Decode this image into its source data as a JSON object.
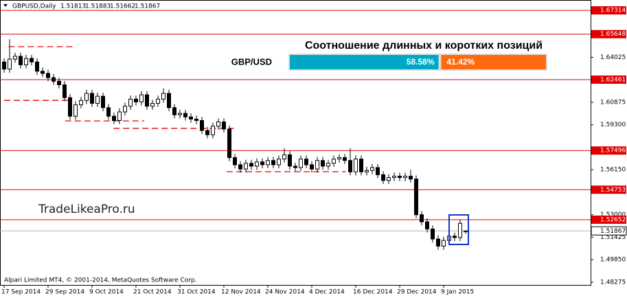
{
  "chart_data": {
    "type": "candlestick",
    "symbol": "GBPUSD,Daily",
    "watermark": "TradeLikeaPro.ru",
    "copyright": "Alpari Limited MT4, © 2001-2014, MetaQuotes Software Corp.",
    "categories": [
      "17 Sep 2014",
      null,
      null,
      null,
      null,
      null,
      null,
      null,
      "29 Sep 2014",
      null,
      null,
      null,
      null,
      null,
      null,
      null,
      "9 Oct 2014",
      null,
      null,
      null,
      null,
      null,
      null,
      null,
      "21 Oct 2014",
      null,
      null,
      null,
      null,
      null,
      null,
      null,
      "31 Oct 2014",
      null,
      null,
      null,
      null,
      null,
      null,
      null,
      "12 Nov 2014",
      null,
      null,
      null,
      null,
      null,
      null,
      null,
      "24 Nov 2014",
      null,
      null,
      null,
      null,
      null,
      null,
      null,
      "4 Dec 2014",
      null,
      null,
      null,
      null,
      null,
      null,
      null,
      "16 Dec 2014",
      null,
      null,
      null,
      null,
      null,
      null,
      null,
      "29 Dec 2014",
      null,
      null,
      null,
      null,
      null,
      null,
      null,
      "9 Jan 2015",
      null,
      null,
      null,
      null
    ],
    "open": [
      1.637,
      1.632,
      1.639,
      1.641,
      1.635,
      1.6395,
      1.637,
      1.6305,
      1.629,
      1.626,
      1.6235,
      1.621,
      1.612,
      1.599,
      1.607,
      1.61,
      1.615,
      1.608,
      1.613,
      1.605,
      1.599,
      1.596,
      1.602,
      1.606,
      1.611,
      1.609,
      1.614,
      1.606,
      1.608,
      1.611,
      1.615,
      1.605,
      1.6,
      1.601,
      1.5985,
      1.597,
      1.596,
      1.589,
      1.586,
      1.592,
      1.595,
      1.59,
      1.57,
      1.565,
      1.562,
      1.566,
      1.564,
      1.567,
      1.565,
      1.568,
      1.565,
      1.569,
      1.572,
      1.564,
      1.563,
      1.569,
      1.565,
      1.562,
      1.568,
      1.564,
      1.566,
      1.569,
      1.57,
      1.568,
      1.56,
      1.569,
      1.56,
      1.561,
      1.563,
      1.558,
      1.554,
      1.556,
      1.557,
      1.556,
      1.557,
      1.555,
      1.53,
      1.525,
      1.52,
      1.513,
      1.508,
      1.512,
      1.515,
      1.514,
      1.51813
    ],
    "high": [
      1.6395,
      1.653,
      1.6435,
      1.6435,
      1.642,
      1.642,
      1.6395,
      1.633,
      1.6315,
      1.6285,
      1.626,
      1.6235,
      1.6145,
      1.6095,
      1.6125,
      1.6175,
      1.6175,
      1.6155,
      1.6155,
      1.6075,
      1.6015,
      1.6045,
      1.6085,
      1.6135,
      1.6135,
      1.6165,
      1.6165,
      1.6105,
      1.6135,
      1.6185,
      1.6175,
      1.6075,
      1.6035,
      1.6035,
      1.601,
      1.5995,
      1.5985,
      1.5915,
      1.5945,
      1.5975,
      1.5975,
      1.5925,
      1.5725,
      1.5675,
      1.5685,
      1.5685,
      1.5695,
      1.5695,
      1.5705,
      1.5705,
      1.5715,
      1.5765,
      1.5745,
      1.5665,
      1.5715,
      1.5715,
      1.5675,
      1.5705,
      1.5705,
      1.5685,
      1.5715,
      1.5725,
      1.5725,
      1.5765,
      1.5715,
      1.5715,
      1.5635,
      1.5655,
      1.5655,
      1.5605,
      1.5585,
      1.5595,
      1.5595,
      1.5595,
      1.5615,
      1.5575,
      1.5325,
      1.5275,
      1.5225,
      1.5155,
      1.5145,
      1.5175,
      1.5175,
      1.5265,
      1.51883
    ],
    "low": [
      1.6295,
      1.6295,
      1.6365,
      1.6325,
      1.6325,
      1.6345,
      1.628,
      1.6265,
      1.6235,
      1.621,
      1.6185,
      1.6095,
      1.5965,
      1.5965,
      1.6045,
      1.6075,
      1.6055,
      1.6055,
      1.6025,
      1.5965,
      1.5935,
      1.5935,
      1.5995,
      1.6035,
      1.6065,
      1.6065,
      1.6035,
      1.6035,
      1.6055,
      1.6085,
      1.6025,
      1.5975,
      1.5975,
      1.596,
      1.5945,
      1.5935,
      1.5865,
      1.5835,
      1.5835,
      1.5895,
      1.5875,
      1.5675,
      1.5625,
      1.5595,
      1.5595,
      1.5615,
      1.5615,
      1.5625,
      1.5625,
      1.5625,
      1.5625,
      1.5665,
      1.5615,
      1.5605,
      1.5605,
      1.5625,
      1.5595,
      1.5595,
      1.5615,
      1.5615,
      1.5635,
      1.5665,
      1.5655,
      1.5575,
      1.5575,
      1.5575,
      1.5575,
      1.5585,
      1.5555,
      1.5515,
      1.5515,
      1.5535,
      1.5535,
      1.5535,
      1.5525,
      1.5275,
      1.5225,
      1.5175,
      1.5105,
      1.5055,
      1.5055,
      1.5095,
      1.5115,
      1.5115,
      1.51662
    ],
    "close": [
      1.632,
      1.639,
      1.641,
      1.635,
      1.6395,
      1.637,
      1.6305,
      1.629,
      1.626,
      1.6235,
      1.621,
      1.612,
      1.599,
      1.607,
      1.61,
      1.615,
      1.608,
      1.613,
      1.605,
      1.599,
      1.596,
      1.602,
      1.606,
      1.611,
      1.609,
      1.614,
      1.606,
      1.608,
      1.611,
      1.615,
      1.605,
      1.6,
      1.601,
      1.5985,
      1.597,
      1.596,
      1.589,
      1.586,
      1.592,
      1.595,
      1.59,
      1.57,
      1.565,
      1.562,
      1.566,
      1.564,
      1.567,
      1.565,
      1.568,
      1.565,
      1.569,
      1.572,
      1.564,
      1.563,
      1.569,
      1.565,
      1.562,
      1.568,
      1.564,
      1.566,
      1.569,
      1.57,
      1.568,
      1.56,
      1.569,
      1.56,
      1.561,
      1.563,
      1.558,
      1.554,
      1.556,
      1.557,
      1.556,
      1.557,
      1.555,
      1.53,
      1.525,
      1.52,
      1.513,
      1.508,
      1.512,
      1.515,
      1.514,
      1.524,
      1.51867
    ],
    "ylim": [
      1.4808,
      1.6804
    ],
    "yticks": [
      1.64025,
      1.60875,
      {
        "value": 1.593,
        "label": "1.59300"
      },
      {
        "value": 1.5615,
        "label": "1.56150"
      },
      {
        "value": 1.53,
        "label": "1.53000"
      },
      1.51425,
      {
        "value": 1.4985,
        "label": "1.49850"
      },
      1.48275
    ],
    "levels": [
      1.67314,
      1.65648,
      1.62461,
      1.57496,
      1.54753,
      1.52652
    ],
    "level_color": "#e00000",
    "dashed_levels": [
      1.6477,
      1.6101,
      1.5957,
      1.5905,
      1.5601
    ],
    "ratio": {
      "title": "Соотношение длинных и коротких позиций",
      "label": "GBP/USD",
      "values": [
        58.58,
        41.42
      ],
      "value_labels": [
        "58.58%",
        "41.42%"
      ],
      "colors": [
        "#00a8c6",
        "#ff6a10"
      ]
    }
  }
}
